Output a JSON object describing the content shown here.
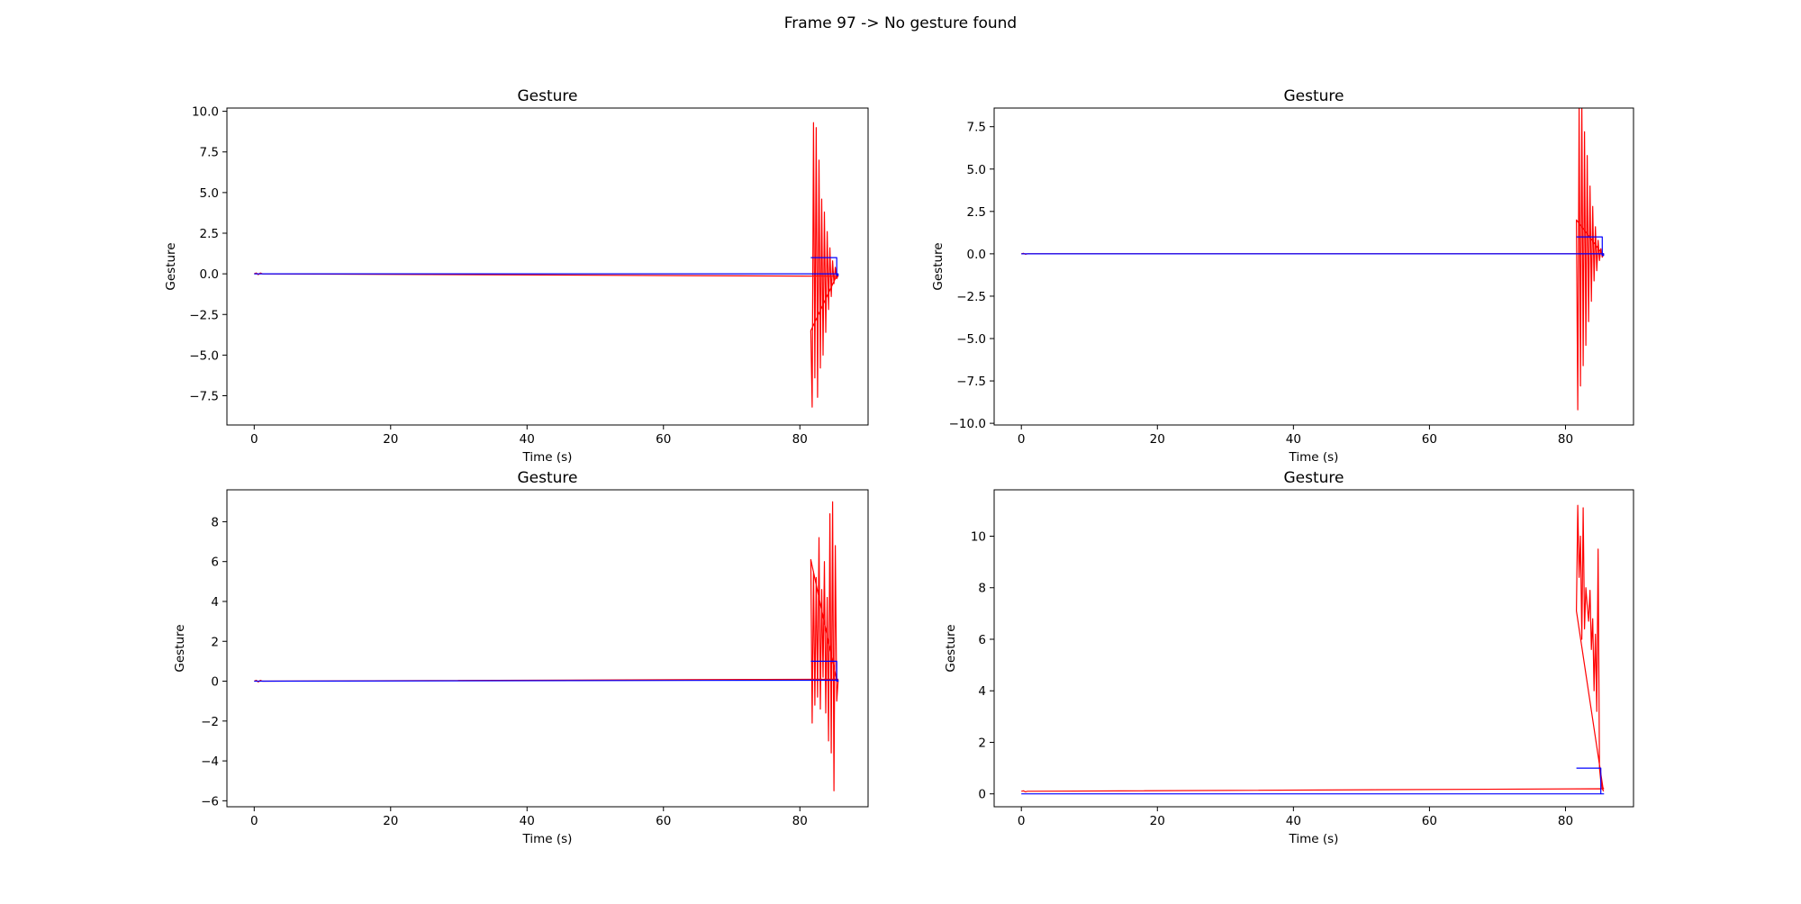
{
  "figure": {
    "suptitle": "Frame 97 -> No gesture found"
  },
  "colors": {
    "signal": "#ff0000",
    "gesture": "#0000ff",
    "axes": "#000000"
  },
  "chart_data": [
    {
      "type": "line",
      "title": "Gesture",
      "xlabel": "Time (s)",
      "ylabel": "Gesture",
      "xlim": [
        -4,
        90
      ],
      "ylim": [
        -9.3,
        10.2
      ],
      "xticks": [
        0,
        20,
        40,
        60,
        80
      ],
      "xtick_labels": [
        "0",
        "20",
        "40",
        "60",
        "80"
      ],
      "yticks": [
        -7.5,
        -5.0,
        -2.5,
        0.0,
        2.5,
        5.0,
        7.5,
        10.0
      ],
      "ytick_labels": [
        "−7.5",
        "−5.0",
        "−2.5",
        "0.0",
        "2.5",
        "5.0",
        "7.5",
        "10.0"
      ],
      "grid": false,
      "series": [
        {
          "color": "#ff0000",
          "x": [
            0.0,
            0.3,
            0.6,
            0.9,
            1.2,
            85.6,
            85.3,
            81.6,
            81.8,
            82.0,
            82.2,
            82.4,
            82.6,
            82.8,
            83.0,
            83.2,
            83.4,
            83.6,
            83.8,
            84.0,
            84.2,
            84.4,
            84.6,
            84.8,
            85.0,
            85.2,
            85.4,
            85.6
          ],
          "y": [
            0.0,
            0.05,
            -0.05,
            0.05,
            0.0,
            -0.15,
            -0.2,
            -3.5,
            -8.2,
            9.3,
            -6.4,
            9.0,
            -7.6,
            7.0,
            -5.8,
            4.6,
            -5.0,
            3.8,
            -3.6,
            2.6,
            -2.2,
            1.6,
            -1.4,
            0.8,
            -0.6,
            0.4,
            -0.3,
            -0.1
          ]
        },
        {
          "color": "#0000ff",
          "x": [
            0.0,
            1.0,
            85.6,
            85.6,
            85.4,
            85.4,
            81.6
          ],
          "y": [
            0.0,
            0.0,
            0.0,
            -0.1,
            -0.1,
            1.0,
            1.0
          ]
        }
      ]
    },
    {
      "type": "line",
      "title": "Gesture",
      "xlabel": "Time (s)",
      "ylabel": "Gesture",
      "xlim": [
        -4,
        90
      ],
      "ylim": [
        -10.1,
        8.6
      ],
      "xticks": [
        0,
        20,
        40,
        60,
        80
      ],
      "xtick_labels": [
        "0",
        "20",
        "40",
        "60",
        "80"
      ],
      "yticks": [
        -10.0,
        -7.5,
        -5.0,
        -2.5,
        0.0,
        2.5,
        5.0,
        7.5
      ],
      "ytick_labels": [
        "−10.0",
        "−7.5",
        "−5.0",
        "−2.5",
        "0.0",
        "2.5",
        "5.0",
        "7.5"
      ],
      "grid": false,
      "series": [
        {
          "color": "#ff0000",
          "x": [
            0.0,
            0.3,
            0.6,
            0.9,
            85.6,
            85.3,
            81.6,
            81.8,
            82.0,
            82.2,
            82.4,
            82.6,
            82.8,
            83.0,
            83.2,
            83.4,
            83.6,
            83.8,
            84.0,
            84.2,
            84.4,
            84.6,
            84.8,
            85.0,
            85.2,
            85.4,
            85.6
          ],
          "y": [
            0.0,
            0.03,
            -0.03,
            0.0,
            0.0,
            0.05,
            2.0,
            -9.2,
            8.6,
            -7.8,
            9.0,
            -6.6,
            7.2,
            -5.4,
            5.8,
            -4.0,
            4.0,
            -2.8,
            2.8,
            -1.6,
            1.6,
            -1.0,
            0.8,
            -0.4,
            0.3,
            -0.2,
            0.0
          ]
        },
        {
          "color": "#0000ff",
          "x": [
            0.0,
            1.0,
            85.6,
            85.6,
            85.4,
            85.4,
            81.6
          ],
          "y": [
            0.0,
            0.0,
            0.0,
            -0.1,
            -0.1,
            1.0,
            1.0
          ]
        }
      ]
    },
    {
      "type": "line",
      "title": "Gesture",
      "xlabel": "Time (s)",
      "ylabel": "Gesture",
      "xlim": [
        -4,
        90
      ],
      "ylim": [
        -6.3,
        9.6
      ],
      "xticks": [
        0,
        20,
        40,
        60,
        80
      ],
      "xtick_labels": [
        "0",
        "20",
        "40",
        "60",
        "80"
      ],
      "yticks": [
        -6,
        -4,
        -2,
        0,
        2,
        4,
        6,
        8
      ],
      "ytick_labels": [
        "−6",
        "−4",
        "−2",
        "0",
        "2",
        "4",
        "6",
        "8"
      ],
      "grid": false,
      "series": [
        {
          "color": "#ff0000",
          "x": [
            0.0,
            0.3,
            0.6,
            0.9,
            1.2,
            85.6,
            85.4,
            81.6,
            81.8,
            82.0,
            82.2,
            82.4,
            82.6,
            82.8,
            83.0,
            83.2,
            83.4,
            83.6,
            83.8,
            84.0,
            84.2,
            84.4,
            84.6,
            84.8,
            85.0,
            85.2,
            85.4,
            85.6
          ],
          "y": [
            0.0,
            0.04,
            -0.04,
            0.04,
            0.0,
            0.1,
            0.05,
            6.1,
            -2.1,
            5.5,
            -1.2,
            5.2,
            -0.8,
            7.2,
            -1.4,
            4.6,
            0.2,
            6.0,
            -1.6,
            4.2,
            -3.0,
            8.4,
            -3.6,
            9.0,
            -5.5,
            6.8,
            -1.0,
            0.0
          ]
        },
        {
          "color": "#0000ff",
          "x": [
            0.0,
            1.0,
            85.6,
            85.6,
            85.4,
            85.4,
            81.6
          ],
          "y": [
            0.0,
            0.0,
            0.05,
            0.0,
            0.0,
            1.0,
            1.0
          ]
        }
      ]
    },
    {
      "type": "line",
      "title": "Gesture",
      "xlabel": "Time (s)",
      "ylabel": "Gesture",
      "xlim": [
        -4,
        90
      ],
      "ylim": [
        -0.5,
        11.8
      ],
      "xticks": [
        0,
        20,
        40,
        60,
        80
      ],
      "xtick_labels": [
        "0",
        "20",
        "40",
        "60",
        "80"
      ],
      "yticks": [
        0,
        2,
        4,
        6,
        8,
        10
      ],
      "ytick_labels": [
        "0",
        "2",
        "4",
        "6",
        "8",
        "10"
      ],
      "grid": false,
      "series": [
        {
          "color": "#ff0000",
          "x": [
            0.0,
            0.3,
            0.6,
            0.9,
            1.2,
            85.6,
            85.5,
            81.6,
            81.8,
            82.0,
            82.2,
            82.4,
            82.6,
            82.8,
            83.0,
            83.2,
            83.4,
            83.6,
            83.8,
            84.0,
            84.2,
            84.4,
            84.6,
            84.8,
            85.0,
            85.2,
            85.4,
            85.6
          ],
          "y": [
            0.1,
            0.12,
            0.08,
            0.1,
            0.1,
            0.2,
            0.25,
            7.1,
            11.2,
            8.4,
            10.0,
            6.0,
            11.1,
            6.4,
            8.0,
            7.3,
            6.7,
            7.9,
            5.6,
            6.8,
            4.0,
            6.2,
            3.2,
            9.5,
            1.0,
            0.5,
            0.2,
            0.1
          ]
        },
        {
          "color": "#0000ff",
          "x": [
            0.0,
            1.0,
            85.6,
            85.6,
            85.2,
            85.2,
            81.6
          ],
          "y": [
            0.0,
            0.0,
            0.0,
            0.0,
            0.0,
            1.0,
            1.0
          ]
        }
      ]
    }
  ]
}
